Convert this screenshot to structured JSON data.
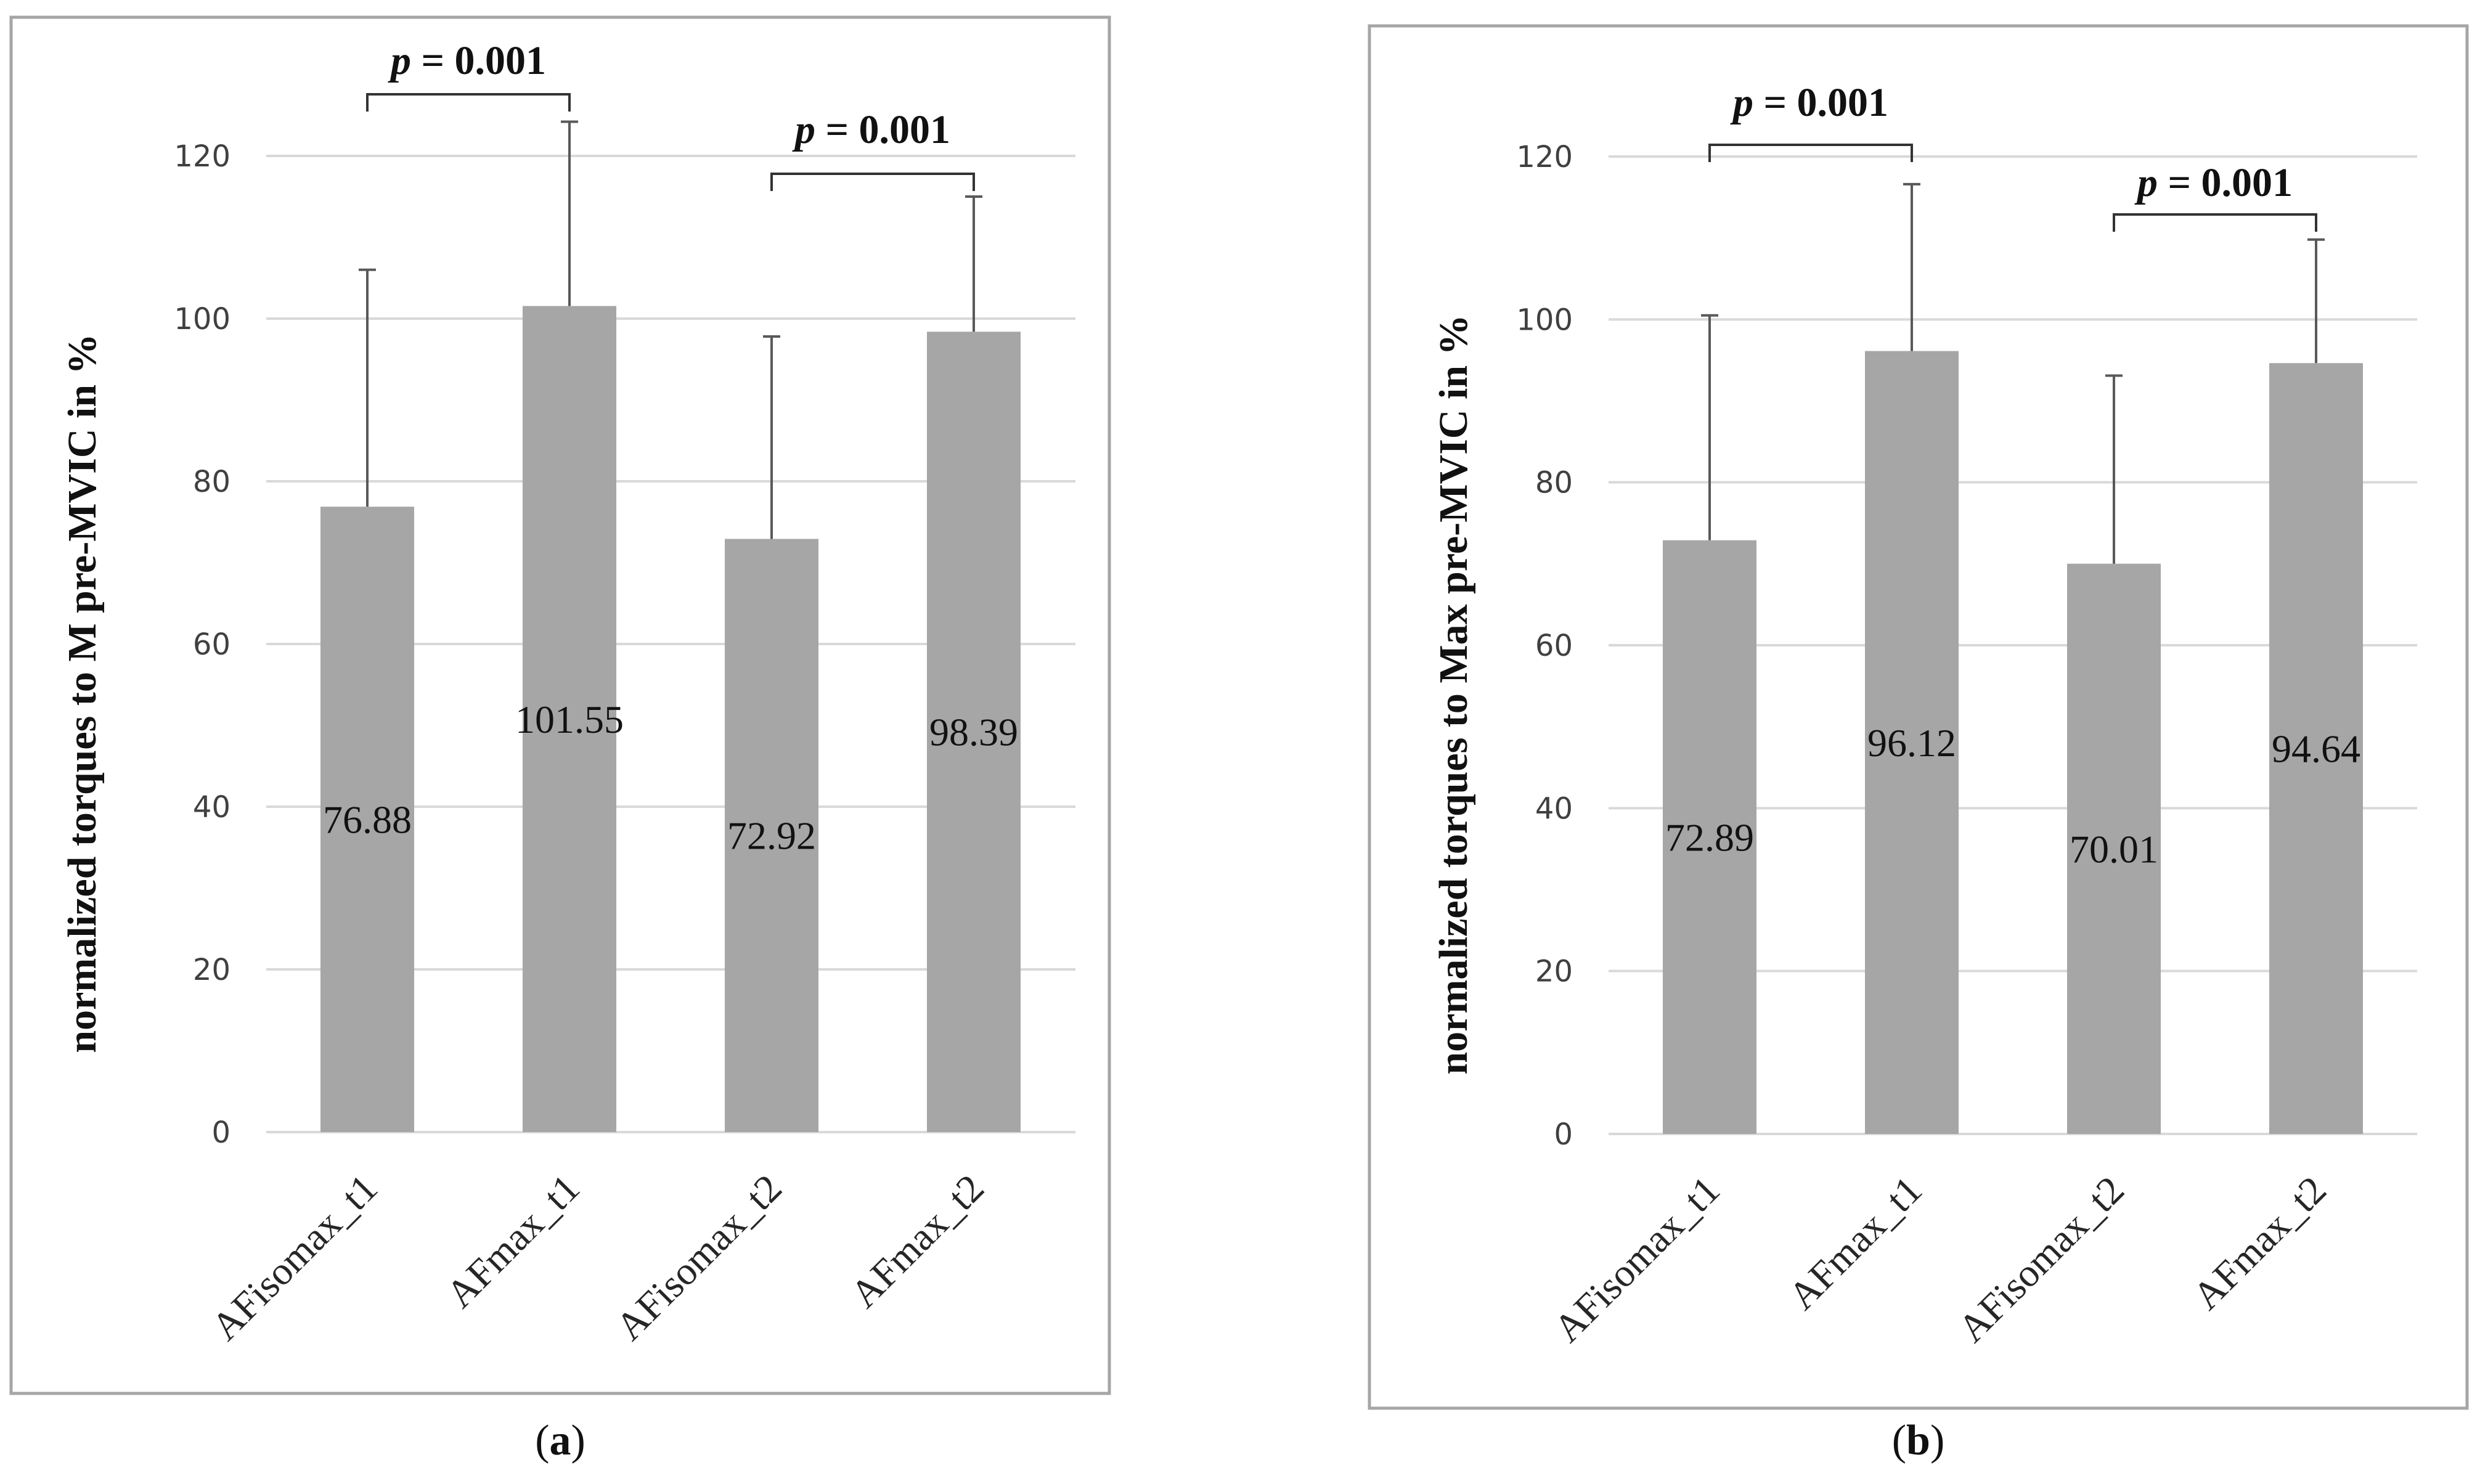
{
  "colors": {
    "bar": "#a6a6a6",
    "grid": "#d9d9d9",
    "frame": "#a6a6a6",
    "error_bar": "#595959",
    "text": "#111111"
  },
  "chart_data": [
    {
      "type": "bar",
      "panel_label": "(a)",
      "panel_letter": "a",
      "title": "",
      "xlabel": "",
      "ylabel": "normalized torques to M pre-MVIC in %",
      "ylim": [
        0,
        120
      ],
      "yticks": [
        0,
        20,
        40,
        60,
        80,
        100,
        120
      ],
      "grid": true,
      "categories": [
        "AFisomax_t1",
        "AFmax_t1",
        "AFisomax_t2",
        "AFmax_t2"
      ],
      "values": [
        76.88,
        101.55,
        72.92,
        98.39
      ],
      "value_labels": [
        "76.88",
        "101.55",
        "72.92",
        "98.39"
      ],
      "error_upper": [
        106.0,
        124.2,
        97.8,
        115.0
      ],
      "significance": [
        {
          "from": 0,
          "to": 1,
          "label": "p = 0.001",
          "p_letter": "p",
          "p_rest": " = 0.001"
        },
        {
          "from": 2,
          "to": 3,
          "label": "p = 0.001",
          "p_letter": "p",
          "p_rest": " = 0.001"
        }
      ]
    },
    {
      "type": "bar",
      "panel_label": "(b)",
      "panel_letter": "b",
      "title": "",
      "xlabel": "",
      "ylabel": "normalized torques to Max pre-MVIC in %",
      "ylim": [
        0,
        120
      ],
      "yticks": [
        0,
        20,
        40,
        60,
        80,
        100,
        120
      ],
      "grid": true,
      "categories": [
        "AFisomax_t1",
        "AFmax_t1",
        "AFisomax_t2",
        "AFmax_t2"
      ],
      "values": [
        72.89,
        96.12,
        70.01,
        94.64
      ],
      "value_labels": [
        "72.89",
        "96.12",
        "70.01",
        "94.64"
      ],
      "error_upper": [
        100.5,
        116.6,
        93.1,
        109.8
      ],
      "significance": [
        {
          "from": 0,
          "to": 1,
          "label": "p = 0.001",
          "p_letter": "p",
          "p_rest": " = 0.001"
        },
        {
          "from": 2,
          "to": 3,
          "label": "p = 0.001",
          "p_letter": "p",
          "p_rest": " = 0.001"
        }
      ]
    }
  ]
}
